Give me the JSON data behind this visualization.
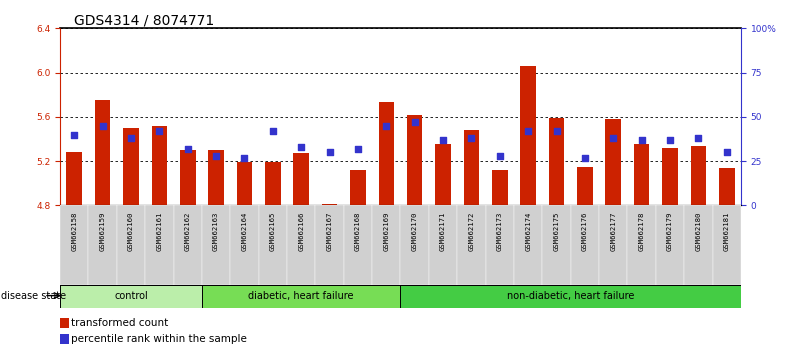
{
  "title": "GDS4314 / 8074771",
  "samples": [
    "GSM662158",
    "GSM662159",
    "GSM662160",
    "GSM662161",
    "GSM662162",
    "GSM662163",
    "GSM662164",
    "GSM662165",
    "GSM662166",
    "GSM662167",
    "GSM662168",
    "GSM662169",
    "GSM662170",
    "GSM662171",
    "GSM662172",
    "GSM662173",
    "GSM662174",
    "GSM662175",
    "GSM662176",
    "GSM662177",
    "GSM662178",
    "GSM662179",
    "GSM662180",
    "GSM662181"
  ],
  "bar_values": [
    5.28,
    5.75,
    5.5,
    5.52,
    5.3,
    5.3,
    5.19,
    5.19,
    5.27,
    4.81,
    5.12,
    5.73,
    5.62,
    5.35,
    5.48,
    5.12,
    6.06,
    5.59,
    5.15,
    5.58,
    5.35,
    5.32,
    5.34,
    5.14
  ],
  "percentile_values": [
    40,
    45,
    38,
    42,
    32,
    28,
    27,
    42,
    33,
    30,
    32,
    45,
    47,
    37,
    38,
    28,
    42,
    42,
    27,
    38,
    37,
    37,
    38,
    30
  ],
  "bar_color": "#cc2200",
  "dot_color": "#3333cc",
  "ylim_left": [
    4.8,
    6.4
  ],
  "ylim_right": [
    0,
    100
  ],
  "yticks_left": [
    4.8,
    5.2,
    5.6,
    6.0,
    6.4
  ],
  "yticks_right": [
    0,
    25,
    50,
    75,
    100
  ],
  "ytick_labels_right": [
    "0",
    "25",
    "50",
    "75",
    "100%"
  ],
  "groups": [
    {
      "label": "control",
      "start": 0,
      "end": 5,
      "color": "#bbeeaa"
    },
    {
      "label": "diabetic, heart failure",
      "start": 5,
      "end": 12,
      "color": "#77dd55"
    },
    {
      "label": "non-diabetic, heart failure",
      "start": 12,
      "end": 24,
      "color": "#44cc44"
    }
  ],
  "bar_width": 0.55,
  "legend_items": [
    {
      "label": "transformed count",
      "color": "#cc2200"
    },
    {
      "label": "percentile rank within the sample",
      "color": "#3333cc"
    }
  ],
  "disease_state_label": "disease state",
  "title_fontsize": 10,
  "tick_fontsize": 6.5,
  "axis_label_color_left": "#cc2200",
  "axis_label_color_right": "#3333cc",
  "xticklabel_bg": "#d0d0d0",
  "xticklabel_fontsize": 5.2
}
